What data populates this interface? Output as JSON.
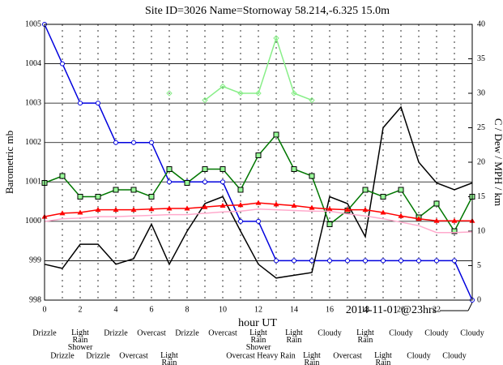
{
  "chart_data": {
    "type": "line",
    "title": "Site ID=3026 Name=Stornoway 58.214,-6.325 15.0m",
    "x_label": "hour UT",
    "y_label": "Barometric mb",
    "y2_label": "C / Dew / MPH / km",
    "annotation": "2014-11-01 @23hrs",
    "x": [
      0,
      1,
      2,
      3,
      4,
      5,
      6,
      7,
      8,
      9,
      10,
      11,
      12,
      13,
      14,
      15,
      16,
      17,
      18,
      19,
      20,
      21,
      22,
      23,
      24
    ],
    "xlim": [
      0,
      24
    ],
    "xticks": [
      0,
      2,
      4,
      6,
      8,
      10,
      12,
      14,
      16,
      18,
      20,
      22
    ],
    "ylim": [
      998,
      1005
    ],
    "yticks": [
      998,
      999,
      1000,
      1001,
      1002,
      1003,
      1004,
      1005
    ],
    "y2lim": [
      0,
      40
    ],
    "y2ticks": [
      0,
      5,
      10,
      15,
      20,
      25,
      30,
      35,
      40
    ],
    "grid": true,
    "weather": [
      "Drizzle",
      "Drizzle",
      "Light Rain Shower",
      "Drizzle",
      "Drizzle",
      "Overcast",
      "Overcast",
      "Light Rain",
      "Drizzle",
      null,
      "Overcast",
      "Overcast",
      "Light Rain Shower",
      "Heavy Rain",
      "Light Rain",
      "Light Rain",
      "Cloudy",
      "Overcast",
      "Light Rain",
      "Light Rain",
      "Cloudy",
      "Cloudy",
      "Cloudy",
      "Cloudy",
      "Cloudy"
    ],
    "series": [
      {
        "color": "#0000dd",
        "marker": "circle",
        "axis": "y",
        "values": [
          1005,
          1004,
          1003,
          1003,
          1002,
          1002,
          1002,
          1001,
          1001,
          1001,
          1001,
          1000,
          1000,
          999,
          999,
          999,
          999,
          999,
          999,
          999,
          999,
          999,
          999,
          999,
          998
        ]
      },
      {
        "color": "#000000",
        "marker": "none",
        "axis": "y2",
        "values": [
          5.2,
          4.6,
          8.1,
          8.1,
          5.2,
          6,
          11,
          5.2,
          10,
          14,
          15,
          10,
          5.2,
          3.2,
          3.6,
          4,
          15,
          14,
          9.2,
          25,
          28,
          20,
          17,
          16,
          17
        ]
      },
      {
        "color": "#007700",
        "marker": "square",
        "axis": "y2",
        "values": [
          17,
          18,
          15,
          15,
          16,
          16,
          15,
          19,
          17,
          19,
          19,
          16,
          21,
          24,
          19,
          18,
          11,
          13,
          16,
          15,
          16,
          12,
          14,
          10,
          15
        ]
      },
      {
        "color": "#ff0000",
        "marker": "triangle",
        "axis": "y2",
        "values": [
          12.1,
          12.6,
          12.7,
          13.1,
          13.1,
          13.1,
          13.2,
          13.3,
          13.3,
          13.5,
          13.7,
          13.8,
          14.1,
          13.9,
          13.7,
          13.4,
          13.2,
          13.1,
          13.1,
          12.7,
          12.2,
          11.8,
          11.5,
          11.5,
          11.5
        ]
      },
      {
        "color": "#ffaacc",
        "marker": "none",
        "axis": "y2",
        "values": [
          11.4,
          11.8,
          11.9,
          12.1,
          12.1,
          12.2,
          12.3,
          12.4,
          12.4,
          12.6,
          12.8,
          12.9,
          13.2,
          13.1,
          13.0,
          12.9,
          12.9,
          12.5,
          12.2,
          11.8,
          11.3,
          10.8,
          9.8,
          9.8,
          9.9
        ]
      },
      {
        "color": "#88ee88",
        "marker": "diamond",
        "axis": "y2",
        "values": [
          null,
          null,
          null,
          null,
          null,
          null,
          null,
          30,
          null,
          29,
          31,
          30,
          30,
          38,
          30,
          29,
          null,
          null,
          null,
          null,
          null,
          null,
          null,
          null,
          null
        ]
      }
    ]
  }
}
